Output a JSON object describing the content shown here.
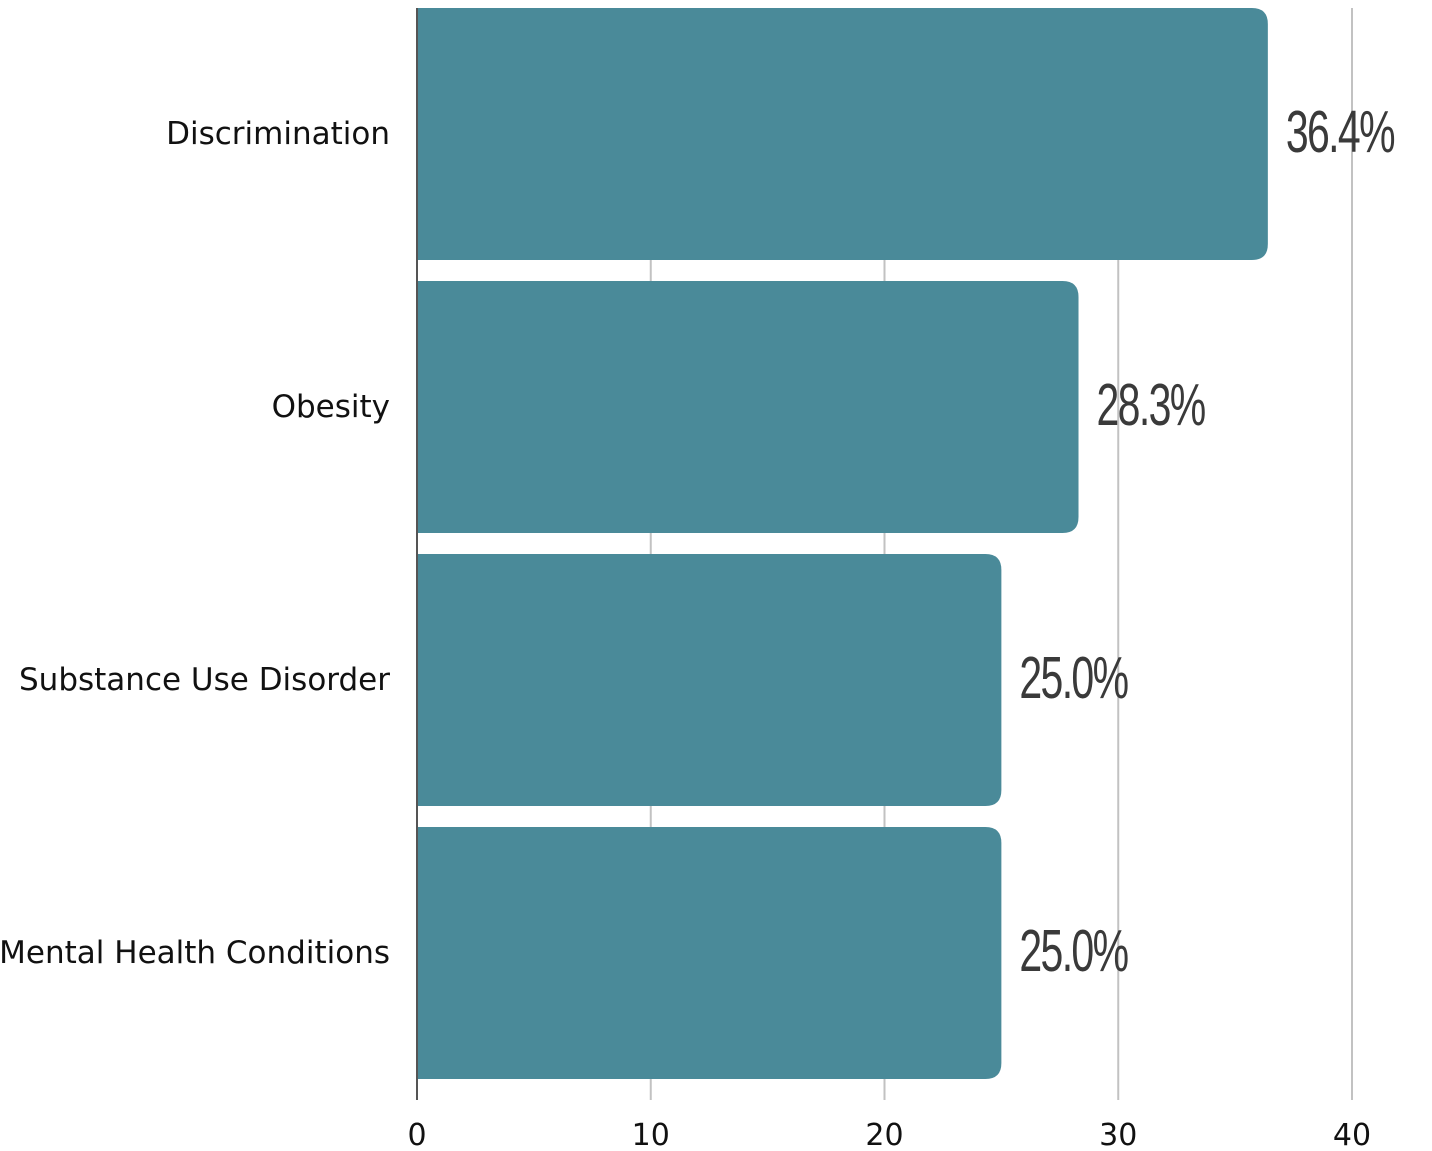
{
  "chart_data": {
    "type": "bar",
    "orientation": "horizontal",
    "categories": [
      "Discrimination",
      "Obesity",
      "Substance Use Disorder",
      "Mental Health Conditions"
    ],
    "values": [
      36.4,
      28.3,
      25.0,
      25.0
    ],
    "data_labels": [
      "36.4%",
      "28.3%",
      "25.0%",
      "25.0%"
    ],
    "x_ticks": [
      "0",
      "10",
      "20",
      "30",
      "40"
    ],
    "xlim": [
      0,
      40
    ],
    "grid": true,
    "bar_color": "#4a8a99",
    "title": "",
    "xlabel": "",
    "ylabel": ""
  }
}
